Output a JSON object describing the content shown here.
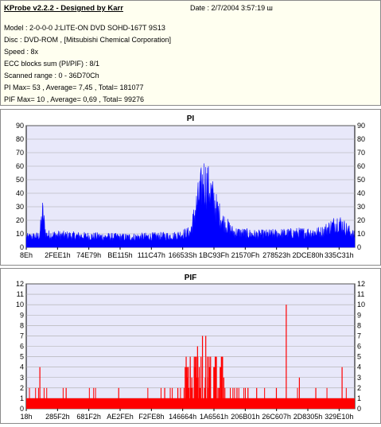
{
  "header": {
    "title": "KProbe v2.2.2 - Designed by Karr",
    "date": "Date : 2/7/2004 3:57:19 ш"
  },
  "info_lines": [
    "Model : 2-0-0-0 J:LITE-ON DVD SOHD-167T     9S13",
    "Disc : DVD-ROM ,  [Mitsubishi Chemical Corporation]",
    "Speed : 8x",
    "ECC blocks sum (PI/PIF) : 8/1",
    "Scanned range : 0 - 36D70Ch",
    "PI Max= 53 , Average= 7,45 , Total= 181077",
    "PIF Max= 10 , Average= 0,69 , Total= 99276"
  ],
  "colors": {
    "pi": "#0000ff",
    "pif": "#ff0000",
    "plot_bg": "#e8e8fa",
    "grid": "#aaaaaa"
  },
  "chart_data": [
    {
      "type": "area",
      "title": "PI",
      "ylim": [
        0,
        90
      ],
      "yticks": [
        0,
        10,
        20,
        30,
        40,
        50,
        60,
        70,
        80,
        90
      ],
      "x_ticks": [
        "8Eh",
        "2FEE1h",
        "74E79h",
        "BE115h",
        "111C47h",
        "16653Sh",
        "1BC93Fh",
        "21570Fh",
        "278523h",
        "2DCE80h",
        "335C31h"
      ],
      "max": 53,
      "average": 7.45,
      "series_profile": [
        {
          "x": 0.0,
          "y": 8
        },
        {
          "x": 0.04,
          "y": 9
        },
        {
          "x": 0.05,
          "y": 28
        },
        {
          "x": 0.06,
          "y": 10
        },
        {
          "x": 0.15,
          "y": 9
        },
        {
          "x": 0.3,
          "y": 8
        },
        {
          "x": 0.45,
          "y": 9
        },
        {
          "x": 0.5,
          "y": 12
        },
        {
          "x": 0.52,
          "y": 35
        },
        {
          "x": 0.54,
          "y": 53
        },
        {
          "x": 0.56,
          "y": 45
        },
        {
          "x": 0.58,
          "y": 30
        },
        {
          "x": 0.6,
          "y": 20
        },
        {
          "x": 0.63,
          "y": 12
        },
        {
          "x": 0.7,
          "y": 10
        },
        {
          "x": 0.8,
          "y": 11
        },
        {
          "x": 0.9,
          "y": 12
        },
        {
          "x": 0.95,
          "y": 20
        },
        {
          "x": 1.0,
          "y": 9
        }
      ]
    },
    {
      "type": "bar",
      "title": "PIF",
      "ylim": [
        0,
        12
      ],
      "yticks": [
        0,
        1,
        2,
        3,
        4,
        5,
        6,
        7,
        8,
        9,
        10,
        11,
        12
      ],
      "x_ticks": [
        "18h",
        "285F2h",
        "681F2h",
        "AE2FEh",
        "F2FE8h",
        "146664h",
        "1A6561h",
        "206B01h",
        "26C607h",
        "2D8305h",
        "329E10h"
      ],
      "max": 10,
      "average": 0.69,
      "spikes": [
        {
          "x": 0.04,
          "y": 4
        },
        {
          "x": 0.12,
          "y": 2
        },
        {
          "x": 0.28,
          "y": 2
        },
        {
          "x": 0.42,
          "y": 2
        },
        {
          "x": 0.46,
          "y": 2
        },
        {
          "x": 0.49,
          "y": 3
        },
        {
          "x": 0.51,
          "y": 4
        },
        {
          "x": 0.52,
          "y": 6
        },
        {
          "x": 0.535,
          "y": 7
        },
        {
          "x": 0.545,
          "y": 7
        },
        {
          "x": 0.555,
          "y": 5
        },
        {
          "x": 0.57,
          "y": 4
        },
        {
          "x": 0.6,
          "y": 3
        },
        {
          "x": 0.64,
          "y": 2
        },
        {
          "x": 0.7,
          "y": 2
        },
        {
          "x": 0.76,
          "y": 2
        },
        {
          "x": 0.79,
          "y": 10
        },
        {
          "x": 0.83,
          "y": 3
        },
        {
          "x": 0.88,
          "y": 2
        },
        {
          "x": 0.96,
          "y": 4
        }
      ]
    }
  ]
}
